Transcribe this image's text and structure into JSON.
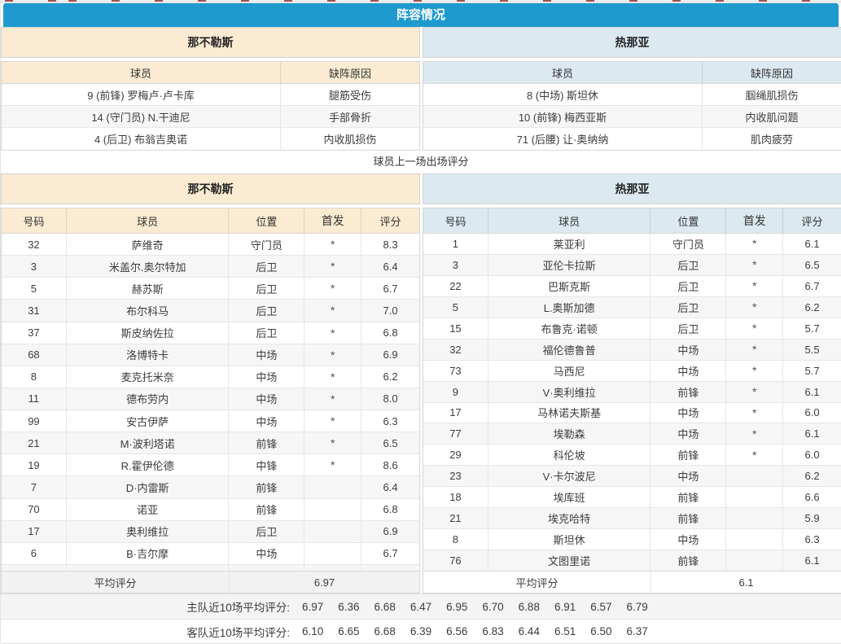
{
  "page_title": "阵容情况",
  "colors": {
    "title_bar_bg": "#1e9acf",
    "home_header_bg": "#faebd2",
    "away_header_bg": "#dce9f0",
    "row_stripe_bg": "#f6f6f6",
    "red_tick": "#a85050"
  },
  "absences": {
    "home": {
      "team": "那不勒斯",
      "columns": [
        "球员",
        "缺阵原因"
      ],
      "rows": [
        {
          "player": "9 (前锋) 罗梅卢·卢卡库",
          "reason": "腿筋受伤"
        },
        {
          "player": "14 (守门员) N.干迪尼",
          "reason": "手部骨折"
        },
        {
          "player": "4 (后卫) 布翁吉奥诺",
          "reason": "内收肌损伤"
        }
      ]
    },
    "away": {
      "team": "热那亚",
      "columns": [
        "球员",
        "缺阵原因"
      ],
      "rows": [
        {
          "player": "8 (中场) 斯坦休",
          "reason": "腘绳肌损伤"
        },
        {
          "player": "10 (前锋) 梅西亚斯",
          "reason": "内收肌问题"
        },
        {
          "player": "71 (后腰) 让·奥纳纳",
          "reason": "肌肉疲劳"
        }
      ]
    }
  },
  "ratings": {
    "section_title": "球员上一场出场评分",
    "columns": [
      "号码",
      "球员",
      "位置",
      "首发",
      "评分"
    ],
    "home": {
      "team": "那不勒斯",
      "players": [
        {
          "num": "32",
          "name": "萨维奇",
          "pos": "守门员",
          "starter": "*",
          "rating": "8.3"
        },
        {
          "num": "3",
          "name": "米盖尔.奥尔特加",
          "pos": "后卫",
          "starter": "*",
          "rating": "6.4"
        },
        {
          "num": "5",
          "name": "赫苏斯",
          "pos": "后卫",
          "starter": "*",
          "rating": "6.7"
        },
        {
          "num": "31",
          "name": "布尔科马",
          "pos": "后卫",
          "starter": "*",
          "rating": "7.0"
        },
        {
          "num": "37",
          "name": "斯皮纳佐拉",
          "pos": "后卫",
          "starter": "*",
          "rating": "6.8"
        },
        {
          "num": "68",
          "name": "洛博特卡",
          "pos": "中场",
          "starter": "*",
          "rating": "6.9"
        },
        {
          "num": "8",
          "name": "麦克托米奈",
          "pos": "中场",
          "starter": "*",
          "rating": "6.2"
        },
        {
          "num": "11",
          "name": "德布劳内",
          "pos": "中场",
          "starter": "*",
          "rating": "8.0"
        },
        {
          "num": "99",
          "name": "安古伊萨",
          "pos": "中场",
          "starter": "*",
          "rating": "6.3"
        },
        {
          "num": "21",
          "name": "M·波利塔诺",
          "pos": "前锋",
          "starter": "*",
          "rating": "6.5"
        },
        {
          "num": "19",
          "name": "R.霍伊伦德",
          "pos": "中锋",
          "starter": "*",
          "rating": "8.6"
        },
        {
          "num": "7",
          "name": "D·内雷斯",
          "pos": "前锋",
          "starter": "",
          "rating": "6.4"
        },
        {
          "num": "70",
          "name": "诺亚",
          "pos": "前锋",
          "starter": "",
          "rating": "6.8"
        },
        {
          "num": "17",
          "name": "奥利维拉",
          "pos": "后卫",
          "starter": "",
          "rating": "6.9"
        },
        {
          "num": "6",
          "name": "B·吉尔摩",
          "pos": "中场",
          "starter": "",
          "rating": "6.7"
        },
        {
          "num": "",
          "name": "",
          "pos": "",
          "starter": "",
          "rating": ""
        }
      ],
      "avg_label": "平均评分",
      "avg": "6.97"
    },
    "away": {
      "team": "热那亚",
      "players": [
        {
          "num": "1",
          "name": "莱亚利",
          "pos": "守门员",
          "starter": "*",
          "rating": "6.1"
        },
        {
          "num": "3",
          "name": "亚伦卡拉斯",
          "pos": "后卫",
          "starter": "*",
          "rating": "6.5"
        },
        {
          "num": "22",
          "name": "巴斯克斯",
          "pos": "后卫",
          "starter": "*",
          "rating": "6.7"
        },
        {
          "num": "5",
          "name": "L.奥斯加德",
          "pos": "后卫",
          "starter": "*",
          "rating": "6.2"
        },
        {
          "num": "15",
          "name": "布鲁克·诺顿",
          "pos": "后卫",
          "starter": "*",
          "rating": "5.7"
        },
        {
          "num": "32",
          "name": "福伦德鲁普",
          "pos": "中场",
          "starter": "*",
          "rating": "5.5"
        },
        {
          "num": "73",
          "name": "马西尼",
          "pos": "中场",
          "starter": "*",
          "rating": "5.7"
        },
        {
          "num": "9",
          "name": "V·奥利维拉",
          "pos": "前锋",
          "starter": "*",
          "rating": "6.1"
        },
        {
          "num": "17",
          "name": "马林诺夫斯基",
          "pos": "中场",
          "starter": "*",
          "rating": "6.0"
        },
        {
          "num": "77",
          "name": "埃勒森",
          "pos": "中场",
          "starter": "*",
          "rating": "6.1"
        },
        {
          "num": "29",
          "name": "科伦坡",
          "pos": "前锋",
          "starter": "*",
          "rating": "6.0"
        },
        {
          "num": "23",
          "name": "V·卡尔波尼",
          "pos": "中场",
          "starter": "",
          "rating": "6.2"
        },
        {
          "num": "18",
          "name": "埃库班",
          "pos": "前锋",
          "starter": "",
          "rating": "6.6"
        },
        {
          "num": "21",
          "name": "埃克哈特",
          "pos": "前锋",
          "starter": "",
          "rating": "5.9"
        },
        {
          "num": "8",
          "name": "斯坦休",
          "pos": "中场",
          "starter": "",
          "rating": "6.3"
        },
        {
          "num": "76",
          "name": "文图里诺",
          "pos": "前锋",
          "starter": "",
          "rating": "6.1"
        }
      ],
      "avg_label": "平均评分",
      "avg": "6.1"
    }
  },
  "recent": {
    "home": {
      "label": "主队近10场平均评分:",
      "values": [
        "6.97",
        "6.36",
        "6.68",
        "6.47",
        "6.95",
        "6.70",
        "6.88",
        "6.91",
        "6.57",
        "6.79"
      ]
    },
    "away": {
      "label": "客队近10场平均评分:",
      "values": [
        "6.10",
        "6.65",
        "6.68",
        "6.39",
        "6.56",
        "6.83",
        "6.44",
        "6.51",
        "6.50",
        "6.37"
      ]
    }
  }
}
